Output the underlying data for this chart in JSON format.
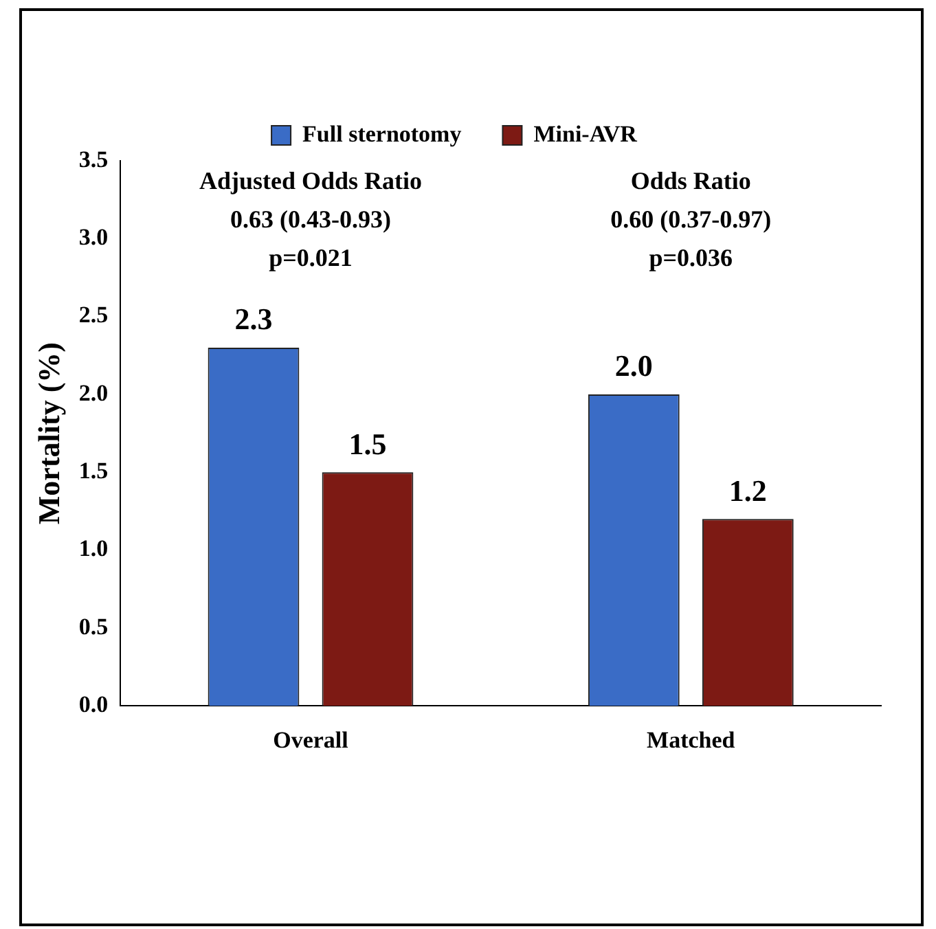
{
  "chart_data": {
    "type": "bar",
    "ylabel": "Mortality (%)",
    "categories": [
      "Overall",
      "Matched"
    ],
    "series": [
      {
        "name": "Full sternotomy",
        "color": "#3a6cc6",
        "values": [
          2.3,
          2.0
        ],
        "value_labels": [
          "2.3",
          "2.0"
        ]
      },
      {
        "name": "Mini-AVR",
        "color": "#7d1a14",
        "values": [
          1.5,
          1.2
        ],
        "value_labels": [
          "1.5",
          "1.2"
        ]
      }
    ],
    "ylim": [
      0,
      3.5
    ],
    "yticks": [
      {
        "value": 0,
        "label": "0.0"
      },
      {
        "value": 0.5,
        "label": "0.5"
      },
      {
        "value": 1,
        "label": "1.0"
      },
      {
        "value": 1.5,
        "label": "1.5"
      },
      {
        "value": 2,
        "label": "2.0"
      },
      {
        "value": 2.5,
        "label": "2.5"
      },
      {
        "value": 3,
        "label": "3.0"
      },
      {
        "value": 3.5,
        "label": "3.5"
      }
    ],
    "grid": false,
    "legend": "top",
    "annotations": [
      "Adjusted Odds Ratio",
      "0.63 (0.43-0.93)",
      "p=0.021",
      "Odds Ratio",
      "0.60 (0.37-0.97)",
      "p=0.036"
    ]
  }
}
